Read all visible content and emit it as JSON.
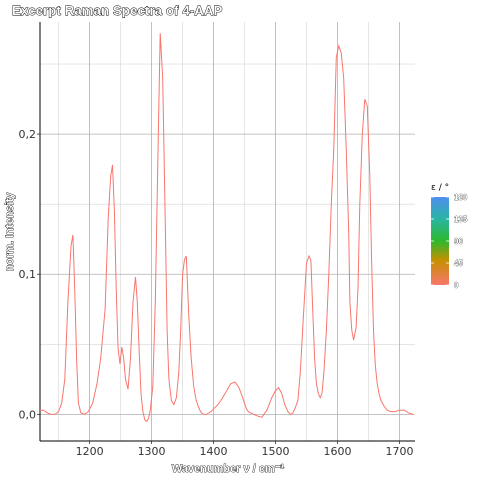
{
  "chart_data": {
    "type": "line",
    "title": "Excerpt Raman Spectra of 4-AAP",
    "xlabel": "Wavenumber ν / cm⁻¹",
    "ylabel": "norm. Intensity",
    "xlim": [
      1120,
      1725
    ],
    "ylim": [
      -0.019,
      0.28
    ],
    "x_ticks": [
      1200,
      1300,
      1400,
      1500,
      1600,
      1700
    ],
    "y_ticks": [
      0.0,
      0.1,
      0.2
    ],
    "y_tick_labels": [
      "0,0",
      "0,1",
      "0,2"
    ],
    "x_minor_gridlines": [
      1150,
      1250,
      1350,
      1450,
      1550,
      1650
    ],
    "y_minor_gridlines": [
      0.05,
      0.15,
      0.25
    ],
    "grid": true,
    "line_color": "#F8766D",
    "series": [
      {
        "x": [
          1120,
          1126,
          1132,
          1138,
          1144,
          1150,
          1155,
          1160,
          1165,
          1170,
          1173,
          1176,
          1179,
          1182,
          1186,
          1192,
          1198,
          1205,
          1212,
          1218,
          1225,
          1230,
          1234,
          1237,
          1240,
          1243,
          1246,
          1249,
          1252,
          1255,
          1258,
          1262,
          1266,
          1270,
          1274,
          1277,
          1280,
          1283,
          1286,
          1289,
          1292,
          1295,
          1298,
          1302,
          1306,
          1310,
          1314,
          1318,
          1322,
          1325,
          1328,
          1332,
          1336,
          1340,
          1344,
          1347,
          1350,
          1353,
          1356,
          1360,
          1364,
          1368,
          1372,
          1375,
          1378,
          1381,
          1384,
          1388,
          1392,
          1396,
          1400,
          1405,
          1412,
          1420,
          1428,
          1435,
          1441,
          1446,
          1450,
          1453,
          1456,
          1460,
          1465,
          1470,
          1478,
          1486,
          1494,
          1500,
          1505,
          1510,
          1515,
          1520,
          1524,
          1528,
          1532,
          1536,
          1540,
          1545,
          1550,
          1554,
          1557,
          1560,
          1563,
          1566,
          1569,
          1572,
          1575,
          1578,
          1582,
          1586,
          1590,
          1594,
          1598,
          1602,
          1606,
          1610,
          1614,
          1618,
          1620,
          1623,
          1626,
          1630,
          1633,
          1636,
          1640,
          1644,
          1648,
          1652,
          1655,
          1658,
          1661,
          1664,
          1667,
          1670,
          1675,
          1680,
          1686,
          1693,
          1700,
          1708,
          1715,
          1722
        ],
        "y": [
          0.003,
          0.003,
          0.001,
          0.0,
          0.0,
          0.002,
          0.008,
          0.025,
          0.08,
          0.12,
          0.128,
          0.09,
          0.04,
          0.008,
          0.001,
          0.0,
          0.002,
          0.008,
          0.022,
          0.04,
          0.075,
          0.14,
          0.17,
          0.178,
          0.145,
          0.09,
          0.047,
          0.036,
          0.048,
          0.04,
          0.025,
          0.018,
          0.04,
          0.08,
          0.098,
          0.08,
          0.045,
          0.015,
          0.002,
          -0.004,
          -0.005,
          -0.003,
          0.003,
          0.02,
          0.08,
          0.18,
          0.272,
          0.24,
          0.14,
          0.06,
          0.025,
          0.01,
          0.007,
          0.012,
          0.03,
          0.06,
          0.1,
          0.11,
          0.113,
          0.07,
          0.04,
          0.02,
          0.01,
          0.006,
          0.003,
          0.001,
          0.0,
          0.0,
          0.001,
          0.002,
          0.004,
          0.006,
          0.01,
          0.016,
          0.022,
          0.023,
          0.019,
          0.013,
          0.008,
          0.004,
          0.002,
          0.001,
          0.0,
          -0.001,
          -0.002,
          0.003,
          0.012,
          0.017,
          0.019,
          0.015,
          0.007,
          0.002,
          0.0,
          0.001,
          0.005,
          0.01,
          0.03,
          0.07,
          0.108,
          0.113,
          0.11,
          0.075,
          0.04,
          0.022,
          0.015,
          0.012,
          0.015,
          0.03,
          0.06,
          0.1,
          0.15,
          0.19,
          0.255,
          0.263,
          0.258,
          0.24,
          0.19,
          0.13,
          0.08,
          0.06,
          0.053,
          0.062,
          0.09,
          0.15,
          0.2,
          0.225,
          0.22,
          0.17,
          0.11,
          0.06,
          0.035,
          0.022,
          0.015,
          0.01,
          0.006,
          0.003,
          0.002,
          0.002,
          0.003,
          0.003,
          0.001,
          0.0
        ]
      }
    ]
  },
  "legend": {
    "title": "ε / °",
    "labels": [
      "180",
      "135",
      "90",
      "45",
      "0"
    ],
    "values": [
      180,
      135,
      90,
      45,
      0
    ],
    "gradient_colors": [
      "#F8766D",
      "#D39200",
      "#1DB835",
      "#00B4C4",
      "#4F8EF0"
    ]
  }
}
